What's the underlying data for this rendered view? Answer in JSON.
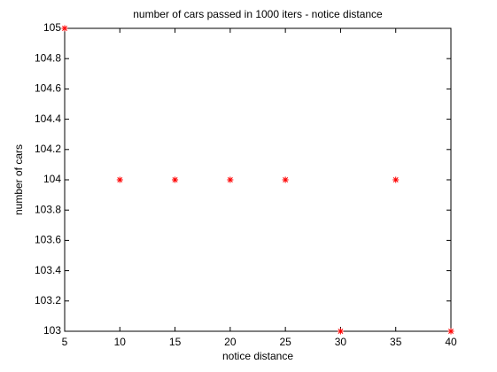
{
  "chart_data": {
    "type": "scatter",
    "title": "number of cars passed in 1000 iters - notice distance",
    "xlabel": "notice distance",
    "ylabel": "number of cars",
    "x": [
      5,
      10,
      15,
      20,
      25,
      30,
      35,
      40
    ],
    "values": [
      105,
      104,
      104,
      104,
      104,
      103,
      104,
      103
    ],
    "color": "#ff0000",
    "marker": "*",
    "xlim": [
      5,
      40
    ],
    "xticks": [
      5,
      10,
      15,
      20,
      25,
      30,
      35,
      40
    ],
    "ylim": [
      103,
      105
    ],
    "yticks": [
      103,
      103.2,
      103.4,
      103.6,
      103.8,
      104,
      104.2,
      104.4,
      104.6,
      104.8,
      105
    ],
    "grid": false
  }
}
